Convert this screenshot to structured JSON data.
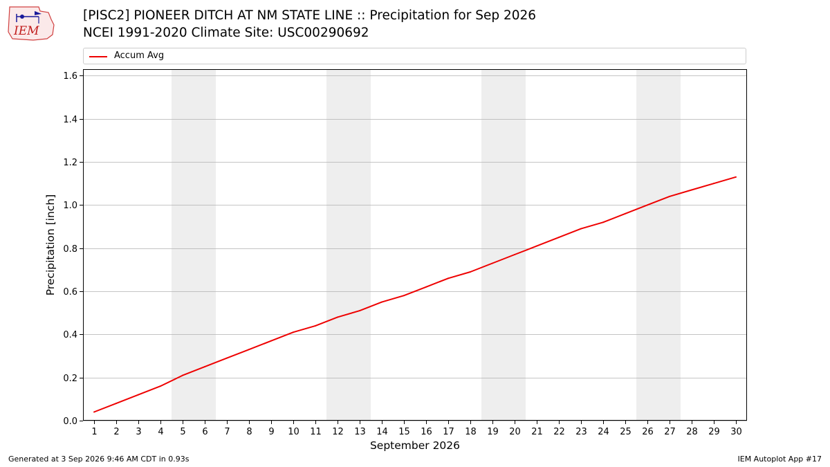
{
  "header": {
    "title_line1": "[PISC2] PIONEER DITCH AT NM STATE LINE :: Precipitation for Sep 2026",
    "title_line2": "NCEI 1991-2020 Climate Site: USC00290692",
    "logo_text": "IEM"
  },
  "footer": {
    "generated": "Generated at 3 Sep 2026 9:46 AM CDT in 0.93s",
    "app": "IEM Autoplot App #17"
  },
  "colors": {
    "series": "#ee0000",
    "weekend_band": "#eeeeee",
    "grid": "#b0b0b0"
  },
  "chart_data": {
    "type": "line",
    "title": "[PISC2] PIONEER DITCH AT NM STATE LINE :: Precipitation for Sep 2026",
    "subtitle": "NCEI 1991-2020 Climate Site: USC00290692",
    "xlabel": "September 2026",
    "ylabel": "Precipitation [inch]",
    "ylim": [
      0,
      1.63
    ],
    "xlim": [
      0.5,
      30.5
    ],
    "yticks": [
      0.0,
      0.2,
      0.4,
      0.6,
      0.8,
      1.0,
      1.2,
      1.4,
      1.6
    ],
    "ytick_labels": [
      "0.0",
      "0.2",
      "0.4",
      "0.6",
      "0.8",
      "1.0",
      "1.2",
      "1.4",
      "1.6"
    ],
    "xticks": [
      1,
      2,
      3,
      4,
      5,
      6,
      7,
      8,
      9,
      10,
      11,
      12,
      13,
      14,
      15,
      16,
      17,
      18,
      19,
      20,
      21,
      22,
      23,
      24,
      25,
      26,
      27,
      28,
      29,
      30
    ],
    "xtick_labels": [
      "1",
      "2",
      "3",
      "4",
      "5",
      "6",
      "7",
      "8",
      "9",
      "10",
      "11",
      "12",
      "13",
      "14",
      "15",
      "16",
      "17",
      "18",
      "19",
      "20",
      "21",
      "22",
      "23",
      "24",
      "25",
      "26",
      "27",
      "28",
      "29",
      "30"
    ],
    "grid": "y",
    "legend": "top",
    "shaded_days": [
      [
        5,
        6
      ],
      [
        12,
        13
      ],
      [
        19,
        20
      ],
      [
        26,
        27
      ]
    ],
    "series": [
      {
        "name": "Accum Avg",
        "x": [
          1,
          2,
          3,
          4,
          5,
          6,
          7,
          8,
          9,
          10,
          11,
          12,
          13,
          14,
          15,
          16,
          17,
          18,
          19,
          20,
          21,
          22,
          23,
          24,
          25,
          26,
          27,
          28,
          29,
          30
        ],
        "values": [
          0.04,
          0.08,
          0.12,
          0.16,
          0.21,
          0.25,
          0.29,
          0.33,
          0.37,
          0.41,
          0.44,
          0.48,
          0.51,
          0.55,
          0.58,
          0.62,
          0.66,
          0.69,
          0.73,
          0.77,
          0.81,
          0.85,
          0.89,
          0.92,
          0.96,
          1.0,
          1.04,
          1.07,
          1.1,
          1.13
        ]
      }
    ]
  }
}
